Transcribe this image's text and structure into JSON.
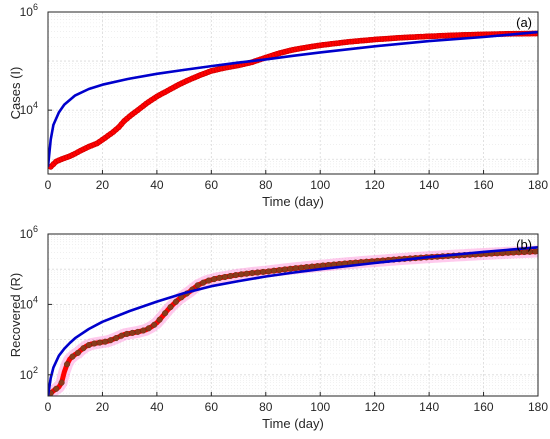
{
  "colors": {
    "observed_a": "#ff0000",
    "observed_b_fill": "#8b3a1a",
    "observed_b_edge": "#ff0000",
    "observed_b_band": "#ff66cc",
    "model": "#0000cc",
    "grid": "#d9d9d9",
    "axis": "#262626"
  },
  "chart_data": [
    {
      "type": "line",
      "panel_label": "(a)",
      "xlabel": "Time (day)",
      "ylabel": "Cases (I)",
      "xlim": [
        0,
        180
      ],
      "ylim": [
        500,
        1000000
      ],
      "yscale": "log",
      "xticks": [
        0,
        20,
        40,
        60,
        80,
        100,
        120,
        140,
        160,
        180
      ],
      "yticks": [
        {
          "value": 10000,
          "base": "10",
          "exp": "4"
        },
        {
          "value": 1000000,
          "base": "10",
          "exp": "6"
        }
      ],
      "grid": true,
      "series": [
        {
          "role": "observed",
          "style": "markers",
          "x": [
            1,
            3,
            5,
            8,
            10,
            12,
            15,
            18,
            20,
            22,
            24,
            26,
            28,
            30,
            33,
            36,
            40,
            44,
            48,
            52,
            56,
            60,
            65,
            70,
            75,
            80,
            85,
            90,
            95,
            100,
            110,
            120,
            130,
            140,
            150,
            160,
            170,
            180
          ],
          "y": [
            700,
            900,
            1000,
            1150,
            1300,
            1500,
            1800,
            2100,
            2500,
            3000,
            3600,
            4500,
            6000,
            7500,
            10000,
            13500,
            19000,
            25000,
            33000,
            42000,
            52000,
            63000,
            73000,
            82000,
            95000,
            118000,
            145000,
            170000,
            190000,
            210000,
            245000,
            275000,
            300000,
            320000,
            337000,
            350000,
            360000,
            365000
          ]
        },
        {
          "role": "model",
          "style": "line",
          "x": [
            0,
            1,
            2,
            4,
            6,
            10,
            15,
            20,
            30,
            40,
            50,
            60,
            70,
            80,
            90,
            100,
            120,
            140,
            160,
            180
          ],
          "y": [
            700,
            2500,
            5000,
            9000,
            13000,
            20000,
            27000,
            33000,
            44000,
            55000,
            66000,
            79000,
            93000,
            108000,
            128000,
            150000,
            200000,
            255000,
            310000,
            390000
          ]
        }
      ]
    },
    {
      "type": "line",
      "panel_label": "(b)",
      "xlabel": "Time (day)",
      "ylabel": "Recovered (R)",
      "xlim": [
        0,
        180
      ],
      "ylim": [
        25,
        1000000
      ],
      "yscale": "log",
      "xticks": [
        0,
        20,
        40,
        60,
        80,
        100,
        120,
        140,
        160,
        180
      ],
      "yticks": [
        {
          "value": 100,
          "base": "10",
          "exp": "2"
        },
        {
          "value": 10000,
          "base": "10",
          "exp": "4"
        },
        {
          "value": 1000000,
          "base": "10",
          "exp": "6"
        }
      ],
      "grid": true,
      "series": [
        {
          "role": "observed",
          "style": "markers",
          "x": [
            1,
            2,
            3,
            4,
            5,
            6,
            7,
            8,
            9,
            10,
            11,
            12,
            14,
            16,
            18,
            20,
            22,
            25,
            28,
            30,
            33,
            36,
            38,
            40,
            42,
            44,
            46,
            48,
            50,
            52,
            55,
            58,
            62,
            66,
            70,
            75,
            80,
            90,
            100,
            110,
            120,
            130,
            140,
            150,
            160,
            170,
            180
          ],
          "y": [
            30,
            35,
            40,
            45,
            60,
            120,
            200,
            280,
            330,
            380,
            420,
            500,
            650,
            750,
            800,
            850,
            900,
            1100,
            1400,
            1500,
            1650,
            1900,
            2300,
            3000,
            4500,
            7000,
            10000,
            14000,
            18000,
            23000,
            35000,
            45000,
            55000,
            62000,
            70000,
            78000,
            85000,
            105000,
            125000,
            148000,
            170000,
            195000,
            220000,
            245000,
            270000,
            295000,
            320000
          ]
        },
        {
          "role": "model",
          "style": "line",
          "x": [
            0,
            1,
            2,
            4,
            6,
            8,
            10,
            15,
            20,
            30,
            40,
            50,
            60,
            70,
            80,
            90,
            100,
            120,
            140,
            160,
            180
          ],
          "y": [
            25,
            80,
            160,
            350,
            550,
            800,
            1100,
            2000,
            3200,
            6500,
            12000,
            21000,
            33000,
            46000,
            62000,
            80000,
            100000,
            150000,
            220000,
            310000,
            420000
          ]
        }
      ]
    }
  ]
}
